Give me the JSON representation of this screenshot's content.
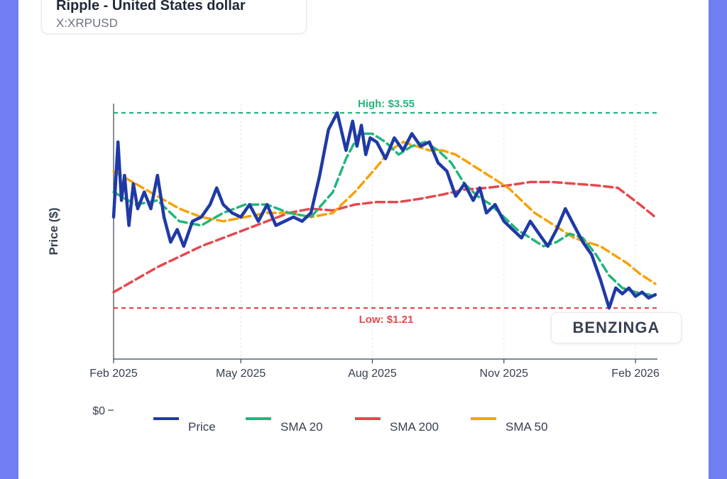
{
  "header": {
    "name": "Ripple - United States dollar",
    "ticker": "X:XRPUSD"
  },
  "brand": "BENZINGA",
  "colors": {
    "price": "#1f3aa6",
    "sma20": "#22b67b",
    "sma200": "#e5484d",
    "sma50": "#f5a20a",
    "high": "#22b67b",
    "low": "#e5484d"
  },
  "chart_data": {
    "type": "line",
    "title": "Ripple - United States dollar",
    "xlabel": "",
    "ylabel": "Price ($)",
    "ylim": [
      0,
      3.8
    ],
    "xlim": [
      0,
      12.4
    ],
    "grid": true,
    "legend": "bottom",
    "x_ticks": [
      {
        "x": 0,
        "label": "Feb 2025"
      },
      {
        "x": 2.9,
        "label": "May 2025"
      },
      {
        "x": 5.9,
        "label": "Aug 2025"
      },
      {
        "x": 8.9,
        "label": "Nov 2025"
      },
      {
        "x": 11.9,
        "label": "Feb 2026"
      }
    ],
    "y_ticks": [
      {
        "y": 0,
        "label": "$0"
      }
    ],
    "annotations": [
      {
        "type": "hline",
        "y": 3.55,
        "label": "High: $3.55",
        "style": "high"
      },
      {
        "type": "hline",
        "y": 1.21,
        "label": "Low: $1.21",
        "style": "low"
      }
    ],
    "series": [
      {
        "name": "Price",
        "key": "price",
        "x": [
          0,
          0.1,
          0.18,
          0.25,
          0.35,
          0.45,
          0.55,
          0.7,
          0.85,
          1,
          1.15,
          1.3,
          1.45,
          1.6,
          1.8,
          2,
          2.2,
          2.35,
          2.5,
          2.7,
          2.9,
          3.1,
          3.3,
          3.5,
          3.7,
          3.9,
          4.1,
          4.3,
          4.5,
          4.7,
          4.9,
          5.1,
          5.3,
          5.45,
          5.55,
          5.65,
          5.75,
          5.85,
          6,
          6.2,
          6.4,
          6.6,
          6.8,
          7,
          7.2,
          7.4,
          7.6,
          7.8,
          8,
          8.2,
          8.35,
          8.5,
          8.7,
          8.9,
          9.1,
          9.3,
          9.5,
          9.7,
          9.9,
          10.1,
          10.3,
          10.5,
          10.7,
          10.9,
          11.1,
          11.3,
          11.45,
          11.6,
          11.75,
          11.9,
          12.05,
          12.2,
          12.35
        ],
        "values": [
          2.3,
          3.2,
          2.5,
          2.8,
          2.2,
          2.7,
          2.4,
          2.6,
          2.4,
          2.8,
          2.3,
          2.0,
          2.15,
          1.95,
          2.25,
          2.3,
          2.45,
          2.65,
          2.45,
          2.35,
          2.3,
          2.45,
          2.25,
          2.45,
          2.2,
          2.25,
          2.3,
          2.25,
          2.35,
          2.8,
          3.35,
          3.55,
          3.1,
          3.45,
          3.15,
          3.4,
          3.05,
          3.25,
          3.2,
          3.0,
          3.25,
          3.1,
          3.3,
          3.15,
          3.2,
          2.95,
          2.85,
          2.55,
          2.7,
          2.5,
          2.65,
          2.35,
          2.45,
          2.25,
          2.15,
          2.05,
          2.25,
          2.1,
          1.95,
          2.15,
          2.4,
          2.2,
          2.0,
          1.85,
          1.55,
          1.21,
          1.45,
          1.38,
          1.45,
          1.35,
          1.4,
          1.33,
          1.37
        ]
      },
      {
        "name": "SMA 20",
        "key": "sma20",
        "x": [
          0,
          0.5,
          1,
          1.5,
          2,
          2.5,
          3,
          3.5,
          4,
          4.5,
          5,
          5.3,
          5.6,
          5.9,
          6.2,
          6.5,
          6.8,
          7.1,
          7.4,
          7.7,
          8,
          8.3,
          8.6,
          8.9,
          9.2,
          9.5,
          9.8,
          10.1,
          10.4,
          10.7,
          11,
          11.3,
          11.6,
          11.9,
          12.2,
          12.35
        ],
        "values": [
          2.6,
          2.45,
          2.5,
          2.25,
          2.2,
          2.35,
          2.45,
          2.45,
          2.35,
          2.3,
          2.6,
          3.0,
          3.3,
          3.3,
          3.2,
          3.05,
          3.15,
          3.2,
          3.1,
          2.95,
          2.7,
          2.55,
          2.45,
          2.3,
          2.15,
          2.05,
          1.95,
          2.0,
          2.1,
          2.05,
          1.85,
          1.6,
          1.45,
          1.4,
          1.37,
          1.36
        ]
      },
      {
        "name": "SMA 200",
        "key": "sma200",
        "x": [
          0,
          1,
          2,
          3,
          4,
          4.5,
          5,
          5.5,
          6,
          6.5,
          7,
          7.5,
          8,
          8.5,
          9,
          9.5,
          10,
          10.5,
          11,
          11.5,
          12,
          12.35
        ],
        "values": [
          1.4,
          1.7,
          1.95,
          2.15,
          2.35,
          2.4,
          2.38,
          2.45,
          2.48,
          2.48,
          2.52,
          2.57,
          2.63,
          2.65,
          2.68,
          2.72,
          2.72,
          2.7,
          2.68,
          2.65,
          2.45,
          2.3
        ]
      },
      {
        "name": "SMA 50",
        "key": "sma50",
        "x": [
          0,
          0.5,
          1,
          1.5,
          2,
          2.5,
          3,
          3.5,
          4,
          4.5,
          5,
          5.5,
          6,
          6.3,
          6.6,
          6.9,
          7.2,
          7.5,
          7.8,
          8.1,
          8.4,
          8.7,
          9,
          9.3,
          9.6,
          9.9,
          10.2,
          10.5,
          10.8,
          11.1,
          11.4,
          11.7,
          12,
          12.35
        ],
        "values": [
          2.85,
          2.7,
          2.55,
          2.4,
          2.3,
          2.25,
          2.3,
          2.35,
          2.35,
          2.3,
          2.35,
          2.6,
          2.9,
          3.1,
          3.2,
          3.15,
          3.1,
          3.1,
          3.05,
          2.95,
          2.85,
          2.75,
          2.65,
          2.5,
          2.35,
          2.25,
          2.15,
          2.05,
          2.0,
          1.95,
          1.85,
          1.75,
          1.62,
          1.5
        ]
      }
    ]
  }
}
